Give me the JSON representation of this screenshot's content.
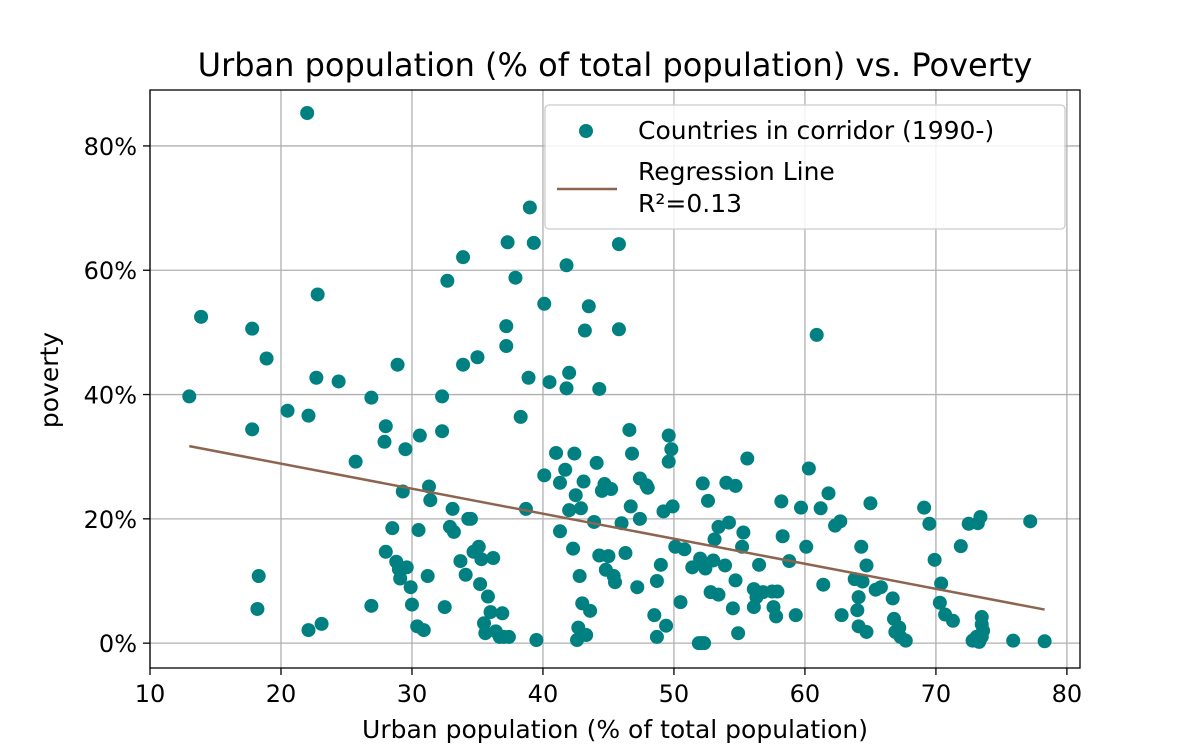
{
  "chart_data": {
    "type": "scatter",
    "title": "Urban population (% of total population) vs. Poverty",
    "xlabel": "Urban population (% of total population)",
    "ylabel": "poverty",
    "xlim": [
      10,
      81
    ],
    "ylim": [
      -0.04,
      0.89
    ],
    "x_ticks": [
      10,
      20,
      30,
      40,
      50,
      60,
      70,
      80
    ],
    "y_ticks": [
      0,
      0.2,
      0.4,
      0.6,
      0.8
    ],
    "y_tick_labels": [
      "0%",
      "20%",
      "40%",
      "60%",
      "80%"
    ],
    "grid": true,
    "legend_position": "top-right",
    "series": [
      {
        "name": "Countries in corridor (1990-)",
        "color": "#008080",
        "points": [
          [
            13.0,
            0.397
          ],
          [
            13.9,
            0.525
          ],
          [
            17.8,
            0.506
          ],
          [
            17.8,
            0.344
          ],
          [
            18.3,
            0.108
          ],
          [
            18.2,
            0.055
          ],
          [
            18.9,
            0.458
          ],
          [
            20.5,
            0.374
          ],
          [
            22.0,
            0.853
          ],
          [
            22.1,
            0.366
          ],
          [
            22.1,
            0.021
          ],
          [
            22.7,
            0.427
          ],
          [
            22.8,
            0.561
          ],
          [
            23.1,
            0.031
          ],
          [
            24.4,
            0.421
          ],
          [
            25.7,
            0.292
          ],
          [
            26.9,
            0.395
          ],
          [
            26.9,
            0.06
          ],
          [
            27.9,
            0.324
          ],
          [
            28.0,
            0.349
          ],
          [
            28.0,
            0.147
          ],
          [
            28.5,
            0.185
          ],
          [
            28.8,
            0.131
          ],
          [
            28.9,
            0.448
          ],
          [
            29.0,
            0.119
          ],
          [
            29.1,
            0.104
          ],
          [
            29.3,
            0.244
          ],
          [
            29.5,
            0.312
          ],
          [
            29.6,
            0.122
          ],
          [
            29.9,
            0.09
          ],
          [
            30.0,
            0.062
          ],
          [
            30.4,
            0.027
          ],
          [
            30.5,
            0.182
          ],
          [
            30.6,
            0.334
          ],
          [
            30.9,
            0.021
          ],
          [
            31.2,
            0.108
          ],
          [
            31.3,
            0.252
          ],
          [
            31.4,
            0.23
          ],
          [
            32.3,
            0.397
          ],
          [
            32.3,
            0.341
          ],
          [
            32.5,
            0.058
          ],
          [
            32.7,
            0.583
          ],
          [
            32.9,
            0.187
          ],
          [
            33.1,
            0.216
          ],
          [
            33.2,
            0.179
          ],
          [
            33.7,
            0.132
          ],
          [
            33.9,
            0.448
          ],
          [
            33.9,
            0.621
          ],
          [
            34.1,
            0.11
          ],
          [
            34.3,
            0.2
          ],
          [
            34.5,
            0.2
          ],
          [
            34.7,
            0.147
          ],
          [
            35.0,
            0.46
          ],
          [
            35.1,
            0.155
          ],
          [
            35.2,
            0.095
          ],
          [
            35.3,
            0.135
          ],
          [
            35.5,
            0.032
          ],
          [
            35.6,
            0.016
          ],
          [
            35.8,
            0.075
          ],
          [
            36.0,
            0.05
          ],
          [
            36.2,
            0.137
          ],
          [
            36.4,
            0.019
          ],
          [
            36.7,
            0.01
          ],
          [
            36.9,
            0.048
          ],
          [
            37.0,
            0.01
          ],
          [
            37.2,
            0.51
          ],
          [
            37.2,
            0.478
          ],
          [
            37.3,
            0.645
          ],
          [
            37.4,
            0.01
          ],
          [
            37.9,
            0.588
          ],
          [
            38.3,
            0.364
          ],
          [
            38.7,
            0.216
          ],
          [
            38.9,
            0.427
          ],
          [
            39.0,
            0.701
          ],
          [
            39.3,
            0.644
          ],
          [
            39.5,
            0.005
          ],
          [
            40.1,
            0.546
          ],
          [
            40.1,
            0.27
          ],
          [
            40.5,
            0.42
          ],
          [
            41.0,
            0.306
          ],
          [
            41.3,
            0.18
          ],
          [
            41.3,
            0.258
          ],
          [
            41.7,
            0.279
          ],
          [
            41.8,
            0.41
          ],
          [
            41.8,
            0.608
          ],
          [
            42.0,
            0.435
          ],
          [
            42.0,
            0.214
          ],
          [
            42.3,
            0.152
          ],
          [
            42.4,
            0.305
          ],
          [
            42.5,
            0.238
          ],
          [
            42.6,
            0.005
          ],
          [
            42.7,
            0.025
          ],
          [
            42.8,
            0.108
          ],
          [
            42.9,
            0.217
          ],
          [
            43.0,
            0.064
          ],
          [
            43.1,
            0.26
          ],
          [
            43.2,
            0.503
          ],
          [
            43.3,
            0.013
          ],
          [
            43.5,
            0.542
          ],
          [
            43.6,
            0.052
          ],
          [
            43.9,
            0.195
          ],
          [
            44.1,
            0.29
          ],
          [
            44.3,
            0.409
          ],
          [
            44.3,
            0.141
          ],
          [
            44.5,
            0.245
          ],
          [
            44.7,
            0.256
          ],
          [
            44.8,
            0.118
          ],
          [
            45.0,
            0.14
          ],
          [
            45.2,
            0.248
          ],
          [
            45.4,
            0.108
          ],
          [
            45.5,
            0.098
          ],
          [
            45.8,
            0.642
          ],
          [
            45.8,
            0.505
          ],
          [
            46.0,
            0.193
          ],
          [
            46.3,
            0.145
          ],
          [
            46.6,
            0.343
          ],
          [
            46.7,
            0.22
          ],
          [
            46.8,
            0.305
          ],
          [
            47.2,
            0.09
          ],
          [
            47.4,
            0.2
          ],
          [
            47.4,
            0.265
          ],
          [
            47.9,
            0.254
          ],
          [
            48.0,
            0.25
          ],
          [
            48.5,
            0.045
          ],
          [
            48.7,
            0.1
          ],
          [
            48.7,
            0.01
          ],
          [
            49.0,
            0.126
          ],
          [
            49.2,
            0.212
          ],
          [
            49.4,
            0.028
          ],
          [
            49.6,
            0.292
          ],
          [
            49.6,
            0.334
          ],
          [
            49.8,
            0.312
          ],
          [
            49.9,
            0.22
          ],
          [
            50.1,
            0.155
          ],
          [
            50.5,
            0.066
          ],
          [
            50.8,
            0.151
          ],
          [
            51.4,
            0.122
          ],
          [
            51.9,
            0.0
          ],
          [
            52.0,
            0.136
          ],
          [
            52.1,
            0.0
          ],
          [
            52.3,
            0.0
          ],
          [
            52.2,
            0.257
          ],
          [
            52.4,
            0.12
          ],
          [
            52.6,
            0.229
          ],
          [
            52.8,
            0.082
          ],
          [
            53.0,
            0.133
          ],
          [
            53.1,
            0.167
          ],
          [
            53.4,
            0.187
          ],
          [
            53.4,
            0.078
          ],
          [
            53.9,
            0.125
          ],
          [
            54.0,
            0.258
          ],
          [
            54.2,
            0.194
          ],
          [
            54.5,
            0.056
          ],
          [
            54.7,
            0.101
          ],
          [
            54.7,
            0.253
          ],
          [
            54.9,
            0.016
          ],
          [
            55.2,
            0.155
          ],
          [
            55.3,
            0.178
          ],
          [
            55.6,
            0.297
          ],
          [
            56.1,
            0.087
          ],
          [
            56.1,
            0.058
          ],
          [
            56.3,
            0.074
          ],
          [
            56.5,
            0.126
          ],
          [
            56.8,
            0.082
          ],
          [
            57.5,
            0.083
          ],
          [
            57.6,
            0.058
          ],
          [
            57.8,
            0.043
          ],
          [
            57.9,
            0.083
          ],
          [
            58.2,
            0.228
          ],
          [
            58.3,
            0.172
          ],
          [
            58.8,
            0.132
          ],
          [
            59.3,
            0.045
          ],
          [
            59.7,
            0.218
          ],
          [
            60.1,
            0.155
          ],
          [
            60.3,
            0.281
          ],
          [
            60.9,
            0.496
          ],
          [
            61.2,
            0.217
          ],
          [
            61.4,
            0.094
          ],
          [
            61.8,
            0.241
          ],
          [
            62.3,
            0.189
          ],
          [
            62.7,
            0.196
          ],
          [
            62.8,
            0.045
          ],
          [
            63.8,
            0.103
          ],
          [
            64.0,
            0.053
          ],
          [
            64.1,
            0.027
          ],
          [
            64.1,
            0.074
          ],
          [
            64.3,
            0.155
          ],
          [
            64.4,
            0.099
          ],
          [
            64.7,
            0.125
          ],
          [
            64.7,
            0.018
          ],
          [
            65.0,
            0.225
          ],
          [
            65.4,
            0.086
          ],
          [
            65.8,
            0.09
          ],
          [
            66.7,
            0.072
          ],
          [
            66.8,
            0.039
          ],
          [
            66.9,
            0.018
          ],
          [
            67.2,
            0.025
          ],
          [
            67.3,
            0.01
          ],
          [
            67.7,
            0.004
          ],
          [
            69.1,
            0.218
          ],
          [
            69.5,
            0.192
          ],
          [
            69.9,
            0.134
          ],
          [
            70.3,
            0.065
          ],
          [
            70.4,
            0.096
          ],
          [
            70.7,
            0.046
          ],
          [
            71.3,
            0.036
          ],
          [
            71.9,
            0.156
          ],
          [
            72.5,
            0.192
          ],
          [
            72.8,
            0.004
          ],
          [
            73.1,
            0.01
          ],
          [
            73.2,
            0.193
          ],
          [
            73.3,
            0.002
          ],
          [
            73.4,
            0.203
          ],
          [
            73.5,
            0.03
          ],
          [
            73.5,
            0.01
          ],
          [
            73.5,
            0.042
          ],
          [
            73.6,
            0.02
          ],
          [
            77.2,
            0.196
          ],
          [
            75.9,
            0.004
          ],
          [
            78.3,
            0.003
          ]
        ]
      }
    ],
    "regression": {
      "name": "Regression Line",
      "r2_label": "R²=0.13",
      "color": "#8c6450",
      "x": [
        13.0,
        78.3
      ],
      "y": [
        0.317,
        0.054
      ]
    }
  }
}
